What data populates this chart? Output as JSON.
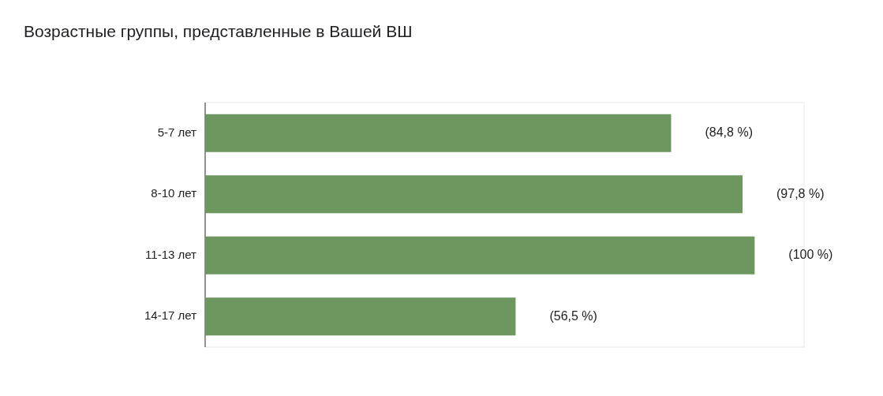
{
  "chart_data": {
    "type": "bar",
    "orientation": "horizontal",
    "title": "Возрастные группы, представленные в Вашей ВШ",
    "categories": [
      "5-7 лет",
      "8-10 лет",
      "11-13 лет",
      "14-17 лет"
    ],
    "values": [
      84.8,
      97.8,
      100,
      56.5
    ],
    "color": "#6e9660",
    "value_labels": [
      "(84,8 %)",
      "(97,8 %)",
      "(100 %)",
      "(56,5 %)"
    ],
    "xlim": [
      0,
      109
    ],
    "tick_labels": "y",
    "legend": false
  }
}
